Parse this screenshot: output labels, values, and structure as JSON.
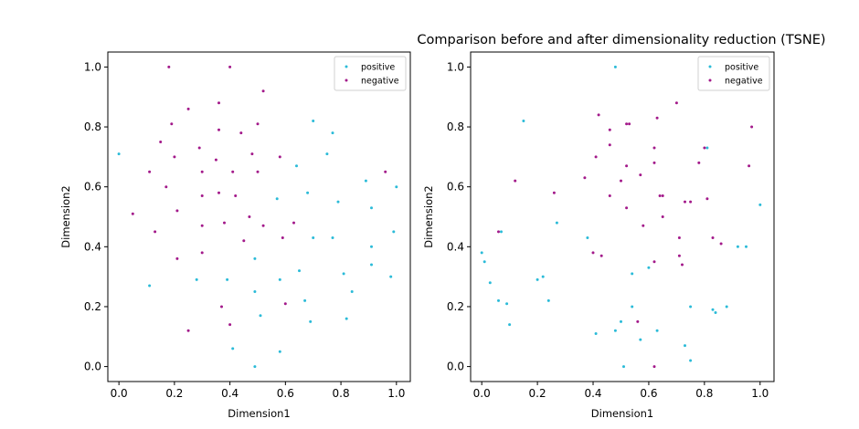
{
  "figure": {
    "title": "Comparison before and after dimensionality reduction (TSNE)"
  },
  "colors": {
    "positive": "#2bbbd8",
    "negative": "#a3198a"
  },
  "chart_data": [
    {
      "type": "scatter",
      "title": "",
      "xlabel": "Dimension1",
      "ylabel": "Dimension2",
      "xlim": [
        -0.04,
        1.05
      ],
      "ylim": [
        -0.05,
        1.05
      ],
      "xticks": [
        "0.0",
        "0.2",
        "0.4",
        "0.6",
        "0.8",
        "1.0"
      ],
      "yticks": [
        "0.0",
        "0.2",
        "0.4",
        "0.6",
        "0.8",
        "1.0"
      ],
      "legend": {
        "placement": "top-right",
        "entries": [
          "positive",
          "negative"
        ]
      },
      "series": [
        {
          "name": "positive",
          "color": "#2bbbd8",
          "points": [
            [
              0.0,
              0.71
            ],
            [
              0.11,
              0.27
            ],
            [
              0.28,
              0.29
            ],
            [
              0.39,
              0.29
            ],
            [
              0.41,
              0.06
            ],
            [
              0.49,
              0.0
            ],
            [
              0.49,
              0.25
            ],
            [
              0.49,
              0.36
            ],
            [
              0.51,
              0.17
            ],
            [
              0.57,
              0.56
            ],
            [
              0.58,
              0.05
            ],
            [
              0.58,
              0.29
            ],
            [
              0.64,
              0.67
            ],
            [
              0.65,
              0.32
            ],
            [
              0.67,
              0.22
            ],
            [
              0.68,
              0.58
            ],
            [
              0.69,
              0.15
            ],
            [
              0.7,
              0.82
            ],
            [
              0.7,
              0.43
            ],
            [
              0.75,
              0.71
            ],
            [
              0.77,
              0.78
            ],
            [
              0.77,
              0.43
            ],
            [
              0.79,
              0.55
            ],
            [
              0.81,
              0.31
            ],
            [
              0.82,
              0.16
            ],
            [
              0.84,
              0.25
            ],
            [
              0.89,
              0.62
            ],
            [
              0.91,
              0.53
            ],
            [
              0.91,
              0.4
            ],
            [
              0.91,
              0.34
            ],
            [
              0.98,
              0.3
            ],
            [
              0.99,
              0.45
            ],
            [
              1.0,
              0.6
            ]
          ]
        },
        {
          "name": "negative",
          "color": "#a3198a",
          "points": [
            [
              0.05,
              0.51
            ],
            [
              0.11,
              0.65
            ],
            [
              0.13,
              0.45
            ],
            [
              0.15,
              0.75
            ],
            [
              0.17,
              0.6
            ],
            [
              0.18,
              1.0
            ],
            [
              0.19,
              0.81
            ],
            [
              0.2,
              0.7
            ],
            [
              0.21,
              0.52
            ],
            [
              0.21,
              0.36
            ],
            [
              0.25,
              0.86
            ],
            [
              0.25,
              0.12
            ],
            [
              0.29,
              0.73
            ],
            [
              0.3,
              0.65
            ],
            [
              0.3,
              0.57
            ],
            [
              0.3,
              0.47
            ],
            [
              0.3,
              0.38
            ],
            [
              0.35,
              0.69
            ],
            [
              0.36,
              0.88
            ],
            [
              0.36,
              0.79
            ],
            [
              0.36,
              0.58
            ],
            [
              0.37,
              0.2
            ],
            [
              0.38,
              0.48
            ],
            [
              0.4,
              0.14
            ],
            [
              0.4,
              1.0
            ],
            [
              0.41,
              0.65
            ],
            [
              0.42,
              0.57
            ],
            [
              0.44,
              0.78
            ],
            [
              0.45,
              0.42
            ],
            [
              0.47,
              0.5
            ],
            [
              0.48,
              0.71
            ],
            [
              0.5,
              0.81
            ],
            [
              0.5,
              0.65
            ],
            [
              0.52,
              0.92
            ],
            [
              0.52,
              0.47
            ],
            [
              0.58,
              0.7
            ],
            [
              0.59,
              0.43
            ],
            [
              0.6,
              0.21
            ],
            [
              0.63,
              0.48
            ],
            [
              0.96,
              0.65
            ]
          ]
        }
      ]
    },
    {
      "type": "scatter",
      "title": "",
      "xlabel": "Dimension1",
      "ylabel": "Dimension2",
      "xlim": [
        -0.04,
        1.05
      ],
      "ylim": [
        -0.05,
        1.05
      ],
      "xticks": [
        "0.0",
        "0.2",
        "0.4",
        "0.6",
        "0.8",
        "1.0"
      ],
      "yticks": [
        "0.0",
        "0.2",
        "0.4",
        "0.6",
        "0.8",
        "1.0"
      ],
      "legend": {
        "placement": "top-right",
        "entries": [
          "positive",
          "negative"
        ]
      },
      "series": [
        {
          "name": "positive",
          "color": "#2bbbd8",
          "points": [
            [
              0.0,
              0.38
            ],
            [
              0.01,
              0.35
            ],
            [
              0.03,
              0.28
            ],
            [
              0.06,
              0.22
            ],
            [
              0.07,
              0.45
            ],
            [
              0.09,
              0.21
            ],
            [
              0.1,
              0.14
            ],
            [
              0.15,
              0.82
            ],
            [
              0.2,
              0.29
            ],
            [
              0.22,
              0.3
            ],
            [
              0.24,
              0.22
            ],
            [
              0.27,
              0.48
            ],
            [
              0.38,
              0.43
            ],
            [
              0.41,
              0.11
            ],
            [
              0.48,
              1.0
            ],
            [
              0.48,
              0.12
            ],
            [
              0.5,
              0.15
            ],
            [
              0.51,
              0.0
            ],
            [
              0.54,
              0.31
            ],
            [
              0.54,
              0.2
            ],
            [
              0.57,
              0.09
            ],
            [
              0.6,
              0.33
            ],
            [
              0.63,
              0.12
            ],
            [
              0.73,
              0.07
            ],
            [
              0.75,
              0.02
            ],
            [
              0.75,
              0.2
            ],
            [
              0.81,
              0.73
            ],
            [
              0.83,
              0.19
            ],
            [
              0.84,
              0.18
            ],
            [
              0.88,
              0.2
            ],
            [
              0.92,
              0.4
            ],
            [
              0.95,
              0.4
            ],
            [
              1.0,
              0.54
            ]
          ]
        },
        {
          "name": "negative",
          "color": "#a3198a",
          "points": [
            [
              0.06,
              0.45
            ],
            [
              0.12,
              0.62
            ],
            [
              0.26,
              0.58
            ],
            [
              0.37,
              0.63
            ],
            [
              0.4,
              0.38
            ],
            [
              0.41,
              0.7
            ],
            [
              0.42,
              0.84
            ],
            [
              0.43,
              0.37
            ],
            [
              0.46,
              0.79
            ],
            [
              0.46,
              0.74
            ],
            [
              0.46,
              0.57
            ],
            [
              0.5,
              0.62
            ],
            [
              0.52,
              0.81
            ],
            [
              0.52,
              0.67
            ],
            [
              0.52,
              0.53
            ],
            [
              0.53,
              0.81
            ],
            [
              0.56,
              0.15
            ],
            [
              0.57,
              0.64
            ],
            [
              0.58,
              0.47
            ],
            [
              0.62,
              0.73
            ],
            [
              0.62,
              0.68
            ],
            [
              0.62,
              0.35
            ],
            [
              0.62,
              0.0
            ],
            [
              0.63,
              0.83
            ],
            [
              0.64,
              0.57
            ],
            [
              0.65,
              0.57
            ],
            [
              0.65,
              0.5
            ],
            [
              0.7,
              0.88
            ],
            [
              0.71,
              0.43
            ],
            [
              0.71,
              0.37
            ],
            [
              0.72,
              0.34
            ],
            [
              0.73,
              0.55
            ],
            [
              0.75,
              0.55
            ],
            [
              0.78,
              0.68
            ],
            [
              0.8,
              0.73
            ],
            [
              0.81,
              0.56
            ],
            [
              0.83,
              0.43
            ],
            [
              0.86,
              0.41
            ],
            [
              0.96,
              0.67
            ],
            [
              0.97,
              0.8
            ]
          ]
        }
      ]
    }
  ]
}
